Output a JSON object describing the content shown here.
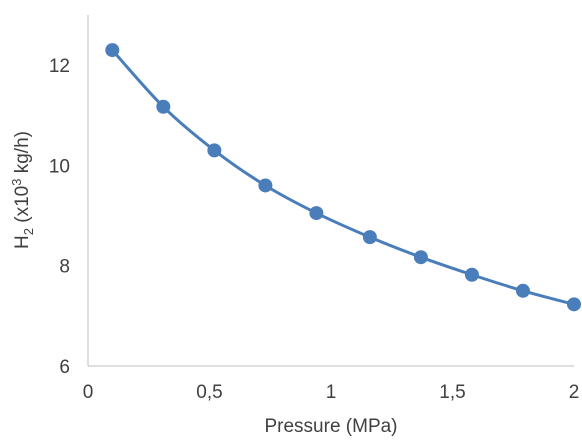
{
  "chart_data": {
    "type": "scatter",
    "series": [
      {
        "x": [
          0.1,
          0.31,
          0.52,
          0.73,
          0.94,
          1.16,
          1.37,
          1.58,
          1.79,
          2.0
        ],
        "y": [
          12.3,
          11.17,
          10.3,
          9.6,
          9.05,
          8.57,
          8.17,
          7.82,
          7.5,
          7.23
        ]
      }
    ],
    "xlim": [
      0,
      2
    ],
    "ylim": [
      6,
      13
    ],
    "x_ticks": [
      0,
      0.5,
      1,
      1.5,
      2
    ],
    "y_ticks": [
      6,
      8,
      10,
      12
    ],
    "x_tick_labels": [
      "0",
      "0,5",
      "1",
      "1,5",
      "2"
    ],
    "y_tick_labels": [
      "6",
      "8",
      "10",
      "12"
    ],
    "xlabel": "Pressure (MPa)",
    "ylabel": {
      "prefix": "H",
      "sub": "2",
      "middle": " (x10",
      "sup": "3",
      "suffix": " kg/h)"
    },
    "grid": false,
    "legend": "none",
    "smooth_line": true,
    "colors": {
      "series": "#4a7ebb",
      "axis": "#bfbfbf",
      "text": "#404040"
    }
  }
}
